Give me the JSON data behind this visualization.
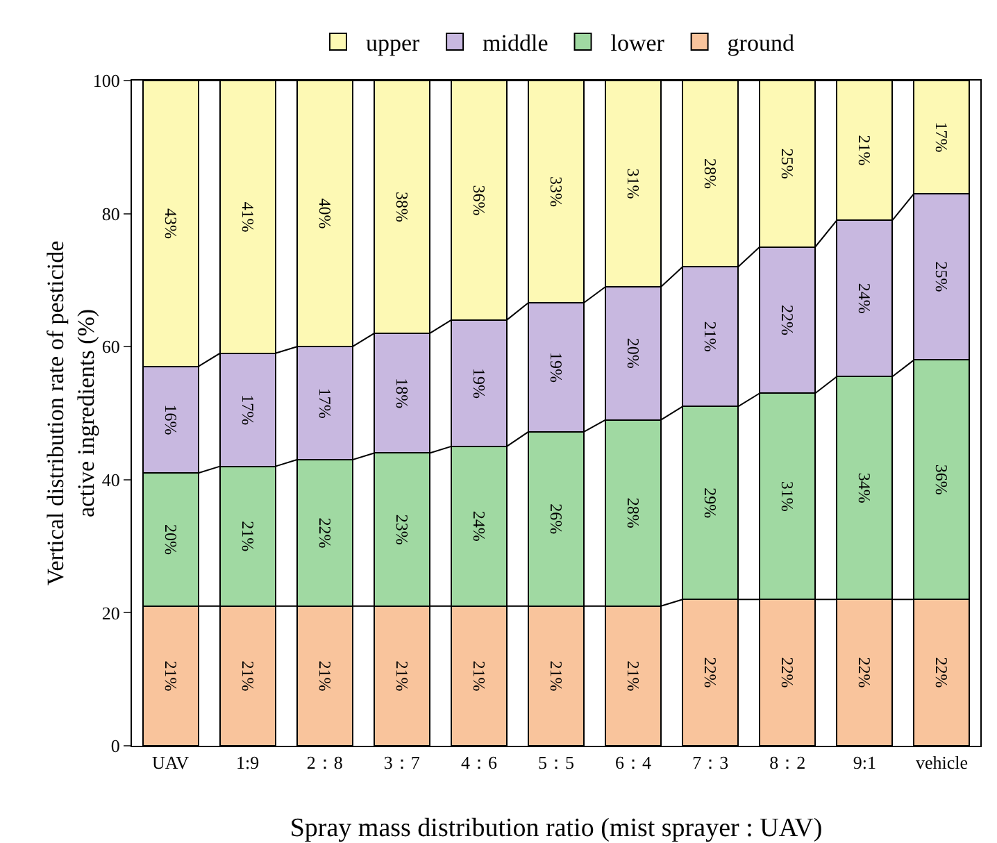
{
  "chart_data": {
    "type": "bar",
    "stacked": true,
    "legend": "top",
    "grid": false,
    "xlabel": "Spray mass distribution ratio (mist sprayer : UAV)",
    "ylabel": "Vertical distribution rate of pesticide\nactive ingredients (%)",
    "categories": [
      "UAV",
      "1:9",
      "2：8",
      "3：7",
      "4：6",
      "5：5",
      "6：4",
      "7：3",
      "8：2",
      "9:1",
      "vehicle"
    ],
    "ylim": [
      0,
      100
    ],
    "yticks": [
      0,
      20,
      40,
      60,
      80,
      100
    ],
    "series": [
      {
        "name": "ground",
        "color": "#f9c49c",
        "values": [
          21,
          21,
          21,
          21,
          21,
          21,
          21,
          22,
          22,
          22,
          22
        ],
        "value_labels": [
          "21%",
          "21%",
          "21%",
          "21%",
          "21%",
          "21%",
          "21%",
          "22%",
          "22%",
          "22%",
          "22%"
        ]
      },
      {
        "name": "lower",
        "color": "#a0d9a2",
        "values": [
          20,
          21,
          22,
          23,
          24,
          26.2,
          28,
          29,
          31,
          33.5,
          36
        ],
        "value_labels": [
          "20%",
          "21%",
          "22%",
          "23%",
          "24%",
          "26%",
          "28%",
          "29%",
          "31%",
          "34%",
          "36%"
        ]
      },
      {
        "name": "middle",
        "color": "#c8b8e0",
        "values": [
          16,
          17,
          17,
          18,
          19,
          19.4,
          20,
          21,
          22,
          23.5,
          25
        ],
        "value_labels": [
          "16%",
          "17%",
          "17%",
          "18%",
          "19%",
          "19%",
          "20%",
          "21%",
          "22%",
          "24%",
          "25%"
        ]
      },
      {
        "name": "upper",
        "color": "#fdf9b4",
        "values": [
          43,
          41,
          40,
          38,
          36,
          33.4,
          31,
          28,
          25,
          21,
          17
        ],
        "value_labels": [
          "43%",
          "41%",
          "40%",
          "38%",
          "36%",
          "33%",
          "31%",
          "28%",
          "25%",
          "21%",
          "17%"
        ]
      }
    ]
  }
}
